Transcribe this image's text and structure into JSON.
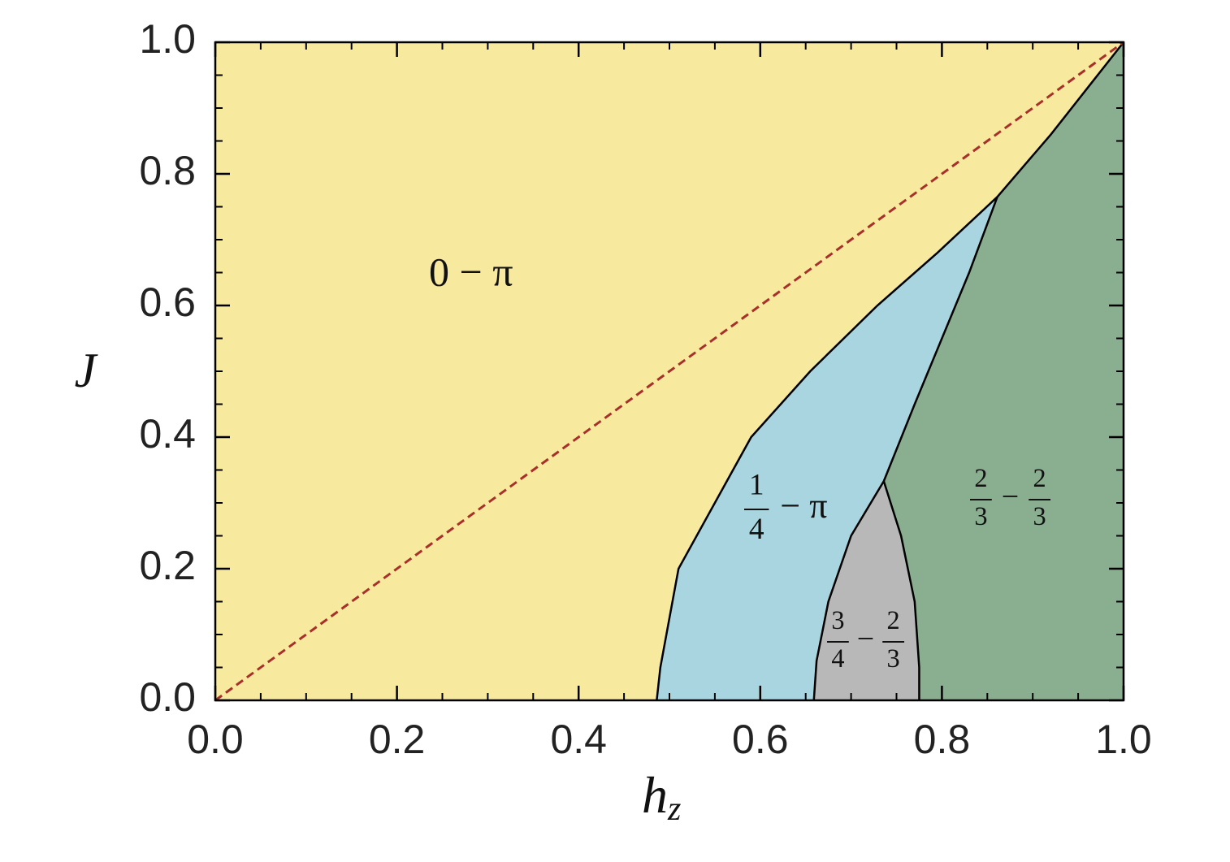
{
  "chart_data": {
    "type": "phase-diagram",
    "xlabel": {
      "text": "h",
      "subscript": "z"
    },
    "ylabel": "J",
    "xlim": [
      0,
      1
    ],
    "ylim": [
      0,
      1
    ],
    "xticks": [
      {
        "value": 0,
        "label": "0.0"
      },
      {
        "value": 0.2,
        "label": "0.2"
      },
      {
        "value": 0.4,
        "label": "0.4"
      },
      {
        "value": 0.6,
        "label": "0.6"
      },
      {
        "value": 0.8,
        "label": "0.8"
      },
      {
        "value": 1,
        "label": "1.0"
      }
    ],
    "yticks": [
      {
        "value": 0,
        "label": "0.0"
      },
      {
        "value": 0.2,
        "label": "0.2"
      },
      {
        "value": 0.4,
        "label": "0.4"
      },
      {
        "value": 0.6,
        "label": "0.6"
      },
      {
        "value": 0.8,
        "label": "0.8"
      },
      {
        "value": 1,
        "label": "1.0"
      }
    ],
    "minor_ticks": true,
    "boundaries": [
      {
        "x": [
          0.486,
          0.49,
          0.51,
          0.55,
          0.59,
          0.655,
          0.729,
          0.795,
          0.861
        ],
        "y": [
          0,
          0.05,
          0.2,
          0.3,
          0.4,
          0.5,
          0.6,
          0.68,
          0.765
        ]
      },
      {
        "x": [
          0.861,
          0.83,
          0.8,
          0.77,
          0.736
        ],
        "y": [
          0.765,
          0.65,
          0.55,
          0.45,
          0.333
        ]
      },
      {
        "x": [
          0.736,
          0.7,
          0.675,
          0.662,
          0.659
        ],
        "y": [
          0.333,
          0.25,
          0.15,
          0.06,
          0
        ]
      },
      {
        "x": [
          0.736,
          0.755,
          0.77,
          0.775,
          0.775
        ],
        "y": [
          0.333,
          0.25,
          0.15,
          0.05,
          0
        ]
      },
      {
        "x": [
          0.861,
          0.92,
          0.96,
          1
        ],
        "y": [
          0.765,
          0.86,
          0.93,
          1
        ]
      }
    ],
    "dashed_line": {
      "x": [
        0,
        1
      ],
      "y": [
        0,
        1
      ],
      "color": "#a8302a"
    },
    "regions": [
      {
        "color": "#f7e99e",
        "label": [
          "0 − π"
        ]
      },
      {
        "color": "#a8d5df",
        "label": [
          {
            "num": "1",
            "den": "4"
          },
          "− π"
        ]
      },
      {
        "color": "#b8b8b8",
        "label": [
          {
            "num": "3",
            "den": "4"
          },
          "−",
          {
            "num": "2",
            "den": "3"
          }
        ]
      },
      {
        "color": "#8aae90",
        "label": [
          {
            "num": "2",
            "den": "3"
          },
          "−",
          {
            "num": "2",
            "den": "3"
          }
        ]
      }
    ]
  }
}
